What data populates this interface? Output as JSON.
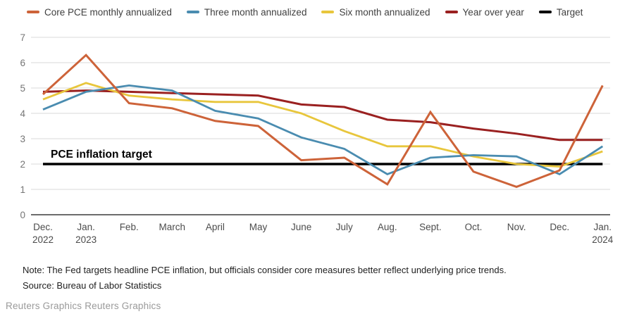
{
  "colors": {
    "background": "#ffffff",
    "grid": "#d9d9d9",
    "axis": "#3c3c3c",
    "ytick_label": "#757575",
    "xtick_label": "#4c4c4c",
    "legend_label": "#3f3f3f",
    "annotation_text": "#000000",
    "note_text": "#212121",
    "footer_text": "#9a9a9a"
  },
  "chart_data": {
    "type": "line",
    "title": "",
    "annotation": "PCE inflation target",
    "ylabel": "",
    "xlabel": "",
    "ylim": [
      0,
      7
    ],
    "yticks": [
      0,
      1,
      2,
      3,
      4,
      5,
      6,
      7
    ],
    "grid": true,
    "legend_position": "top",
    "x_labels": [
      {
        "label": "Dec.",
        "sublabel": "2022"
      },
      {
        "label": "Jan.",
        "sublabel": "2023"
      },
      {
        "label": "Feb.",
        "sublabel": ""
      },
      {
        "label": "March",
        "sublabel": ""
      },
      {
        "label": "April",
        "sublabel": ""
      },
      {
        "label": "May",
        "sublabel": ""
      },
      {
        "label": "June",
        "sublabel": ""
      },
      {
        "label": "July",
        "sublabel": ""
      },
      {
        "label": "Aug.",
        "sublabel": ""
      },
      {
        "label": "Sept.",
        "sublabel": ""
      },
      {
        "label": "Oct.",
        "sublabel": ""
      },
      {
        "label": "Nov.",
        "sublabel": ""
      },
      {
        "label": "Dec.",
        "sublabel": ""
      },
      {
        "label": "Jan.",
        "sublabel": "2024"
      }
    ],
    "series": [
      {
        "id": "core-pce-monthly",
        "name": "Core PCE monthly annualized",
        "color": "#cd6339",
        "width": 3,
        "values": [
          4.75,
          6.3,
          4.4,
          4.2,
          3.7,
          3.5,
          2.15,
          2.25,
          1.2,
          4.05,
          1.7,
          1.1,
          1.75,
          5.1
        ]
      },
      {
        "id": "three-month",
        "name": "Three month annualized",
        "color": "#4a8cb0",
        "width": 2.8,
        "values": [
          4.15,
          4.85,
          5.1,
          4.9,
          4.1,
          3.8,
          3.05,
          2.6,
          1.6,
          2.25,
          2.35,
          2.3,
          1.6,
          2.7
        ]
      },
      {
        "id": "six-month",
        "name": "Six month annualized",
        "color": "#e8c63c",
        "width": 2.8,
        "values": [
          4.55,
          5.2,
          4.7,
          4.55,
          4.45,
          4.45,
          4.0,
          3.3,
          2.7,
          2.7,
          2.3,
          2.0,
          1.9,
          2.5
        ]
      },
      {
        "id": "year-over-year",
        "name": "Year over year",
        "color": "#9a2020",
        "width": 3,
        "values": [
          4.85,
          4.9,
          4.85,
          4.8,
          4.75,
          4.7,
          4.35,
          4.25,
          3.75,
          3.65,
          3.4,
          3.2,
          2.95,
          2.95
        ]
      },
      {
        "id": "target",
        "name": "Target",
        "color": "#000000",
        "width": 3.6,
        "values": [
          2,
          2,
          2,
          2,
          2,
          2,
          2,
          2,
          2,
          2,
          2,
          2,
          2,
          2
        ]
      }
    ]
  },
  "note": "Note: The Fed targets headline PCE inflation, but officials consider core measures better reflect underlying price trends.",
  "source": "Source: Bureau of Labor Statistics",
  "footer": "Reuters Graphics Reuters Graphics"
}
